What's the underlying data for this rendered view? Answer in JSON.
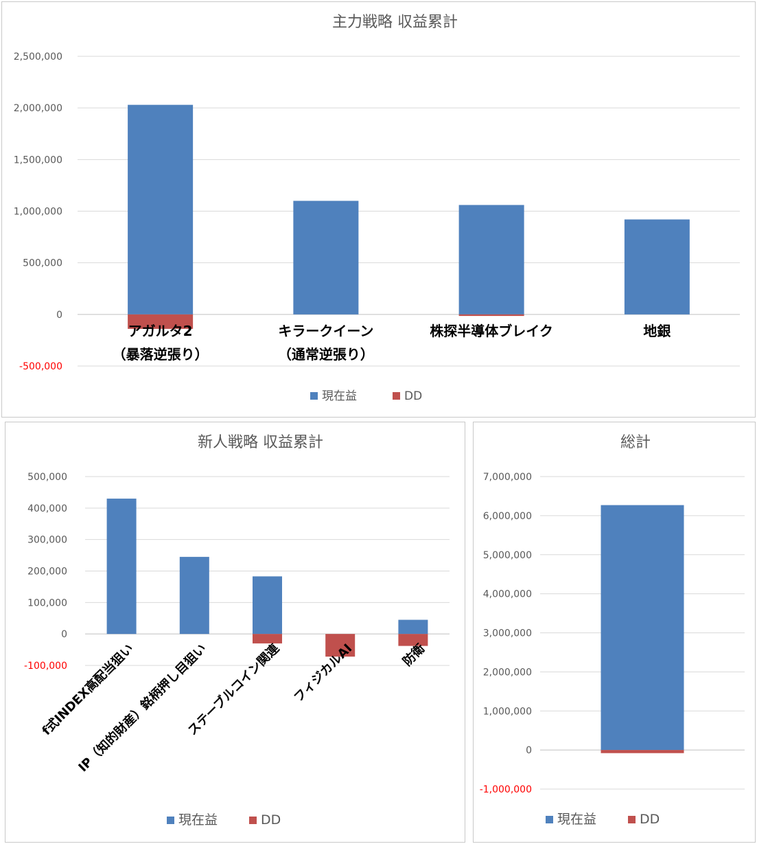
{
  "chart_data": [
    {
      "type": "bar",
      "stacked": true,
      "title": "主力戦略 収益累計",
      "categories": [
        [
          "アガルタ2",
          "（暴落逆張り）"
        ],
        [
          "キラークイーン",
          "（通常逆張り）"
        ],
        [
          "株探半導体ブレイク"
        ],
        [
          "地銀"
        ]
      ],
      "series": [
        {
          "name": "現在益",
          "color": "#4f81bd",
          "values": [
            2030000,
            1100000,
            1060000,
            920000
          ]
        },
        {
          "name": "DD",
          "color": "#c0504d",
          "values": [
            -140000,
            0,
            -15000,
            0
          ]
        }
      ],
      "yticks": [
        "2,500,000",
        "2,000,000",
        "1,500,000",
        "1,000,000",
        "500,000",
        "0",
        "-500,000"
      ],
      "ylim": [
        -500000,
        2500000
      ],
      "negative_tick_color": "#ff0000",
      "legend": "bottom"
    },
    {
      "type": "bar",
      "stacked": true,
      "title": "新人戦略 収益累計",
      "categories": [
        "f式INDEX高配当狙い",
        "IP（知的財産）銘柄押し目狙い",
        "ステーブルコイン関連",
        "フィジカルAI",
        "防衛"
      ],
      "series": [
        {
          "name": "現在益",
          "color": "#4f81bd",
          "values": [
            430000,
            245000,
            183000,
            0,
            45000
          ]
        },
        {
          "name": "DD",
          "color": "#c0504d",
          "values": [
            0,
            0,
            -30000,
            -72000,
            -38000
          ]
        }
      ],
      "yticks": [
        "500,000",
        "400,000",
        "300,000",
        "200,000",
        "100,000",
        "0",
        "-100,000"
      ],
      "ylim": [
        -100000,
        500000
      ],
      "negative_tick_color": "#ff0000",
      "legend": "bottom"
    },
    {
      "type": "bar",
      "stacked": true,
      "title": "総計",
      "categories": [
        ""
      ],
      "series": [
        {
          "name": "現在益",
          "color": "#4f81bd",
          "values": [
            6270000
          ]
        },
        {
          "name": "DD",
          "color": "#c0504d",
          "values": [
            -80000
          ]
        }
      ],
      "yticks": [
        "7,000,000",
        "6,000,000",
        "5,000,000",
        "4,000,000",
        "3,000,000",
        "2,000,000",
        "1,000,000",
        "0",
        "-1,000,000"
      ],
      "ylim": [
        -1000000,
        7000000
      ],
      "negative_tick_color": "#ff0000",
      "legend": "bottom"
    }
  ]
}
